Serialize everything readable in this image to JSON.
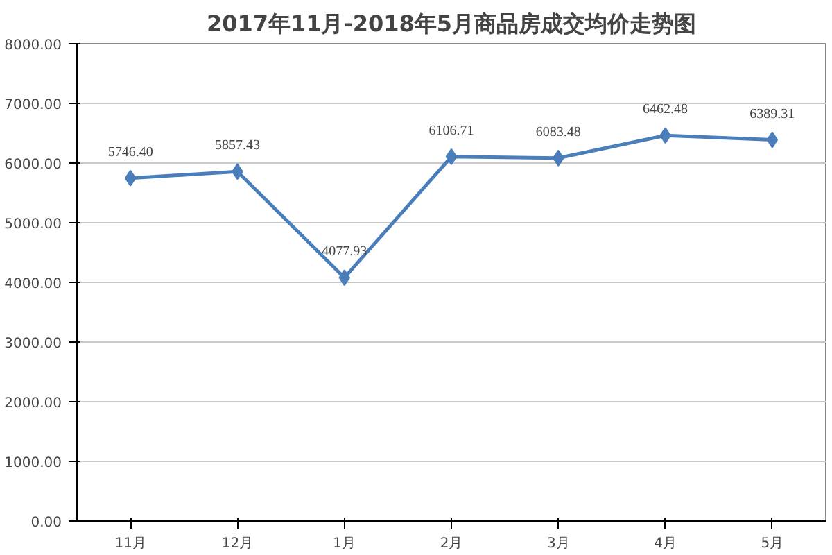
{
  "chart_data": {
    "type": "line",
    "title": "2017年11月-2018年5月商品房成交均价走势图",
    "categories": [
      "11月",
      "12月",
      "1月",
      "2月",
      "3月",
      "4月",
      "5月"
    ],
    "series": [
      {
        "color": "#4a7ebb",
        "values": [
          5746.4,
          5857.43,
          4077.93,
          6106.71,
          6083.48,
          6462.48,
          6389.31
        ],
        "value_labels": [
          "5746.40",
          "5857.43",
          "4077.93",
          "6106.71",
          "6083.48",
          "6462.48",
          "6389.31"
        ]
      }
    ],
    "ylim": [
      0,
      8000
    ],
    "yticks": [
      {
        "value": 0,
        "label": "0.00"
      },
      {
        "value": 1000,
        "label": "1000.00"
      },
      {
        "value": 2000,
        "label": "2000.00"
      },
      {
        "value": 3000,
        "label": "3000.00"
      },
      {
        "value": 4000,
        "label": "4000.00"
      },
      {
        "value": 5000,
        "label": "5000.00"
      },
      {
        "value": 6000,
        "label": "6000.00"
      },
      {
        "value": 7000,
        "label": "7000.00"
      },
      {
        "value": 8000,
        "label": "8000.00"
      }
    ],
    "grid": "y",
    "marker": "diamond",
    "line_style": "solid"
  }
}
